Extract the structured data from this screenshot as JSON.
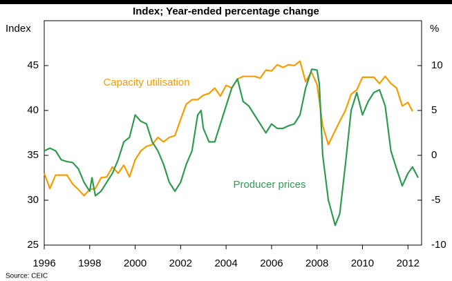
{
  "chart_data": {
    "type": "line",
    "title": "Index; Year-ended percentage change",
    "ylabel": "Index",
    "y2label": "%",
    "source": "Source: CEIC",
    "xlim": [
      1996,
      2012.6
    ],
    "xticks": [
      1996,
      1998,
      2000,
      2002,
      2004,
      2006,
      2008,
      2010,
      2012
    ],
    "ylim": [
      25,
      50
    ],
    "yticks": [
      25,
      30,
      35,
      40,
      45
    ],
    "y2lim": [
      -10,
      15
    ],
    "y2ticks": [
      -10,
      -5,
      0,
      5,
      10
    ],
    "grid": false,
    "series": [
      {
        "name": "Capacity utilisation",
        "color": "#f59c00",
        "axis": "y",
        "x": [
          1996.0,
          1996.25,
          1996.5,
          1996.75,
          1997.0,
          1997.25,
          1997.5,
          1997.75,
          1998.0,
          1998.25,
          1998.5,
          1998.75,
          1999.0,
          1999.25,
          1999.5,
          1999.75,
          2000.0,
          2000.25,
          2000.5,
          2000.75,
          2001.0,
          2001.25,
          2001.5,
          2001.75,
          2002.0,
          2002.25,
          2002.5,
          2002.75,
          2003.0,
          2003.25,
          2003.5,
          2003.75,
          2004.0,
          2004.25,
          2004.5,
          2004.75,
          2005.0,
          2005.25,
          2005.5,
          2005.75,
          2006.0,
          2006.25,
          2006.5,
          2006.75,
          2007.0,
          2007.25,
          2007.5,
          2007.75,
          2008.0,
          2008.25,
          2008.5,
          2008.75,
          2009.0,
          2009.25,
          2009.5,
          2009.75,
          2010.0,
          2010.25,
          2010.5,
          2010.75,
          2011.0,
          2011.25,
          2011.5,
          2011.75,
          2012.0,
          2012.2
        ],
        "values": [
          33.0,
          31.3,
          32.8,
          32.8,
          32.8,
          31.8,
          31.2,
          30.5,
          31.2,
          31.3,
          32.5,
          32.6,
          33.7,
          33.0,
          33.9,
          32.6,
          34.5,
          35.5,
          36.0,
          36.2,
          37.0,
          36.5,
          37.0,
          37.2,
          39.0,
          40.7,
          41.2,
          41.2,
          41.7,
          41.9,
          42.5,
          41.6,
          42.8,
          42.5,
          43.5,
          43.8,
          43.8,
          43.8,
          43.6,
          44.5,
          44.4,
          45.1,
          44.8,
          45.1,
          45.0,
          45.5,
          43.2,
          44.3,
          42.9,
          38.3,
          36.2,
          37.5,
          38.8,
          40.0,
          41.8,
          42.3,
          43.7,
          43.7,
          43.7,
          43.0,
          43.8,
          43.0,
          42.5,
          40.5,
          40.9,
          39.9
        ]
      },
      {
        "name": "Producer prices",
        "color": "#2e9a4f",
        "axis": "y2",
        "x": [
          1996.0,
          1996.25,
          1996.5,
          1996.75,
          1997.0,
          1997.25,
          1997.5,
          1997.75,
          1998.0,
          1998.1,
          1998.25,
          1998.5,
          1998.75,
          1999.0,
          1999.25,
          1999.5,
          1999.75,
          2000.0,
          2000.25,
          2000.5,
          2000.75,
          2001.0,
          2001.25,
          2001.5,
          2001.75,
          2002.0,
          2002.25,
          2002.5,
          2002.75,
          2002.9,
          2003.0,
          2003.25,
          2003.5,
          2003.75,
          2004.0,
          2004.25,
          2004.5,
          2004.75,
          2005.0,
          2005.25,
          2005.5,
          2005.75,
          2006.0,
          2006.25,
          2006.5,
          2006.75,
          2007.0,
          2007.25,
          2007.5,
          2007.77,
          2008.0,
          2008.1,
          2008.25,
          2008.5,
          2008.8,
          2009.0,
          2009.25,
          2009.5,
          2009.75,
          2010.0,
          2010.25,
          2010.5,
          2010.75,
          2011.0,
          2011.25,
          2011.5,
          2011.75,
          2012.0,
          2012.2,
          2012.45
        ],
        "values": [
          0.5,
          0.8,
          0.5,
          -0.5,
          -0.7,
          -0.8,
          -1.5,
          -3.0,
          -4.0,
          -2.5,
          -4.5,
          -4.0,
          -3.0,
          -2.0,
          -0.5,
          1.5,
          2.0,
          4.5,
          3.8,
          3.5,
          1.5,
          0.5,
          -1.0,
          -3.0,
          -4.0,
          -3.0,
          -1.0,
          0.5,
          4.5,
          5.0,
          3.0,
          1.5,
          1.5,
          3.5,
          5.5,
          7.5,
          8.5,
          6.0,
          5.5,
          4.5,
          3.5,
          2.5,
          3.5,
          3.0,
          3.0,
          3.3,
          3.5,
          4.5,
          7.5,
          9.6,
          9.5,
          8.0,
          0.0,
          -5.0,
          -7.8,
          -6.5,
          -1.0,
          5.0,
          7.0,
          4.5,
          6.0,
          7.0,
          7.3,
          5.5,
          0.5,
          -1.5,
          -3.4,
          -2.0,
          -1.3,
          -2.5
        ]
      }
    ]
  }
}
